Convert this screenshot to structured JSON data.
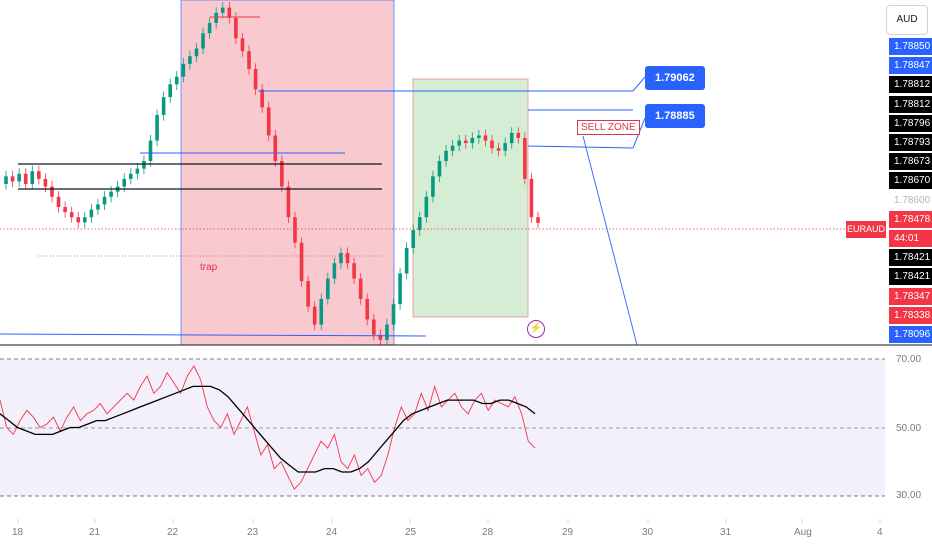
{
  "currency_button": "AUD",
  "symbol_label": "EURAUD",
  "colors": {
    "up": "#089981",
    "down": "#f23645",
    "accent": "#2962ff",
    "rsi": "#f23645",
    "rsi_ma": "#000000"
  },
  "price_axis": [
    {
      "text": "1.78850",
      "bg": "#2962ff",
      "fg": "#ffffff"
    },
    {
      "text": "1.78847",
      "bg": "#2962ff",
      "fg": "#ffffff"
    },
    {
      "text": "1.78812",
      "bg": "#000000",
      "fg": "#ffffff"
    },
    {
      "text": "1.78812",
      "bg": "#000000",
      "fg": "#ffffff"
    },
    {
      "text": "1.78796",
      "bg": "#000000",
      "fg": "#ffffff"
    },
    {
      "text": "1.78793",
      "bg": "#000000",
      "fg": "#ffffff"
    },
    {
      "text": "1.78673",
      "bg": "#000000",
      "fg": "#ffffff"
    },
    {
      "text": "1.78670",
      "bg": "#000000",
      "fg": "#ffffff"
    },
    {
      "text": "1.78600",
      "bg": "#ffffff",
      "fg": "#b2b5be"
    },
    {
      "text": "1.78478",
      "bg": "#f23645",
      "fg": "#ffffff"
    },
    {
      "text": "44:01",
      "bg": "#f23645",
      "fg": "#ffffff"
    },
    {
      "text": "1.78421",
      "bg": "#000000",
      "fg": "#ffffff"
    },
    {
      "text": "1.78421",
      "bg": "#000000",
      "fg": "#ffffff"
    },
    {
      "text": "1.78347",
      "bg": "#f23645",
      "fg": "#ffffff"
    },
    {
      "text": "1.78338",
      "bg": "#f23645",
      "fg": "#ffffff"
    },
    {
      "text": "1.78096",
      "bg": "#2962ff",
      "fg": "#ffffff"
    }
  ],
  "callouts": [
    "1.79062",
    "1.78885"
  ],
  "annotations": {
    "sell_zone": "SELL ZONE",
    "trap": "trap"
  },
  "rsi_levels": [
    "70.00",
    "50.00",
    "30.00"
  ],
  "x_axis_labels": [
    "18",
    "21",
    "22",
    "23",
    "24",
    "25",
    "28",
    "29",
    "30",
    "31",
    "Aug",
    "4"
  ],
  "chart_data": {
    "type": "candlestick",
    "symbol": "EURAUD",
    "last_price": 1.78478,
    "countdown": "44:01",
    "levels_marked": [
      1.79062,
      1.78885,
      1.78812,
      1.78796,
      1.78793,
      1.78673,
      1.7867,
      1.78421,
      1.78347,
      1.78338,
      1.78096
    ],
    "close_series": [
      1.7866,
      1.7864,
      1.7867,
      1.7863,
      1.7868,
      1.7865,
      1.7862,
      1.7858,
      1.7854,
      1.7852,
      1.785,
      1.7848,
      1.785,
      1.7853,
      1.7855,
      1.7858,
      1.786,
      1.7862,
      1.7865,
      1.7867,
      1.7869,
      1.7872,
      1.788,
      1.789,
      1.7897,
      1.7902,
      1.7905,
      1.791,
      1.7913,
      1.7916,
      1.7922,
      1.7926,
      1.793,
      1.7932,
      1.7928,
      1.792,
      1.7915,
      1.7908,
      1.79,
      1.7893,
      1.7882,
      1.7872,
      1.7862,
      1.785,
      1.784,
      1.7825,
      1.7815,
      1.7808,
      1.7818,
      1.7826,
      1.7832,
      1.7836,
      1.7832,
      1.7826,
      1.7818,
      1.781,
      1.7804,
      1.7802,
      1.7808,
      1.7816,
      1.7828,
      1.7838,
      1.7845,
      1.785,
      1.7858,
      1.7866,
      1.7872,
      1.7876,
      1.7878,
      1.788,
      1.7879,
      1.7881,
      1.7882,
      1.788,
      1.7877,
      1.7876,
      1.7879,
      1.7883,
      1.7881,
      1.7865,
      1.785,
      1.78478
    ],
    "rsi": {
      "levels": [
        70,
        50,
        30
      ],
      "ylim": [
        25,
        72
      ],
      "values": [
        58,
        50,
        48,
        52,
        55,
        53,
        50,
        51,
        53,
        49,
        53,
        56,
        52,
        54,
        55,
        57,
        54,
        56,
        58,
        60,
        58,
        62,
        65,
        60,
        62,
        66,
        63,
        60,
        65,
        68,
        64,
        56,
        52,
        50,
        54,
        48,
        52,
        56,
        49,
        42,
        45,
        38,
        40,
        36,
        32,
        34,
        38,
        42,
        46,
        44,
        48,
        40,
        38,
        42,
        36,
        38,
        34,
        36,
        42,
        50,
        56,
        52,
        54,
        60,
        55,
        62,
        56,
        58,
        60,
        56,
        54,
        58,
        60,
        55,
        58,
        57,
        56,
        59,
        54,
        46,
        44
      ],
      "ma": [
        54,
        52,
        50,
        49,
        48,
        48,
        48,
        49,
        50,
        50,
        51,
        52,
        52,
        53,
        54,
        55,
        56,
        57,
        58,
        59,
        60,
        61,
        62,
        62,
        62,
        61,
        59,
        56,
        53,
        50,
        47,
        44,
        41,
        39,
        37,
        37,
        37,
        38,
        38,
        37,
        37,
        38,
        40,
        43,
        46,
        49,
        52,
        54,
        55,
        56,
        57,
        58,
        58,
        58,
        58,
        57,
        57,
        58,
        58,
        57,
        56,
        54
      ]
    }
  }
}
